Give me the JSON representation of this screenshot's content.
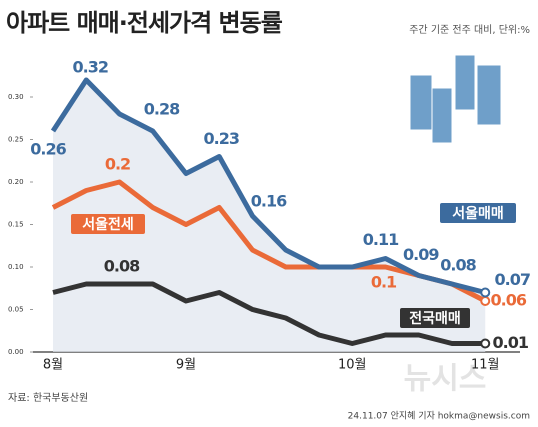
{
  "chart_data": {
    "type": "line",
    "title": "아파트 매매·전세가격 변동률",
    "subtitle": "주간 기준 전주 대비, 단위:%",
    "source": "자료: 한국부동산원",
    "credit": "24.11.07 안지혜 기자 hokma@newsis.com",
    "watermark": "뉴시스",
    "categories": [
      "8월",
      null,
      null,
      null,
      "9월",
      null,
      null,
      null,
      null,
      "10월",
      null,
      null,
      null,
      "11월"
    ],
    "series": [
      {
        "name": "서울매매",
        "color": "#3c6b9e",
        "values": [
          0.26,
          0.32,
          0.28,
          0.26,
          0.21,
          0.23,
          0.16,
          0.12,
          0.1,
          0.1,
          0.11,
          0.09,
          0.08,
          0.07
        ]
      },
      {
        "name": "서울전세",
        "color": "#ea6a38",
        "values": [
          0.17,
          0.19,
          0.2,
          0.17,
          0.15,
          0.17,
          0.12,
          0.1,
          0.1,
          0.1,
          0.1,
          0.09,
          0.08,
          0.06
        ]
      },
      {
        "name": "전국매매",
        "color": "#333333",
        "values": [
          0.07,
          0.08,
          0.08,
          0.08,
          0.06,
          0.07,
          0.05,
          0.04,
          0.02,
          0.01,
          0.02,
          0.02,
          0.01,
          0.01
        ]
      }
    ],
    "ylim": [
      0,
      0.3
    ],
    "yticks": [
      {
        "value": 0,
        "label": "0.00"
      },
      {
        "value": 0.05,
        "label": "0.05"
      },
      {
        "value": 0.1,
        "label": "0.10"
      },
      {
        "value": 0.15,
        "label": "0.15"
      },
      {
        "value": 0.2,
        "label": "0.20"
      },
      {
        "value": 0.25,
        "label": "0.25"
      },
      {
        "value": 0.3,
        "label": "0.30"
      }
    ],
    "grid": false
  }
}
